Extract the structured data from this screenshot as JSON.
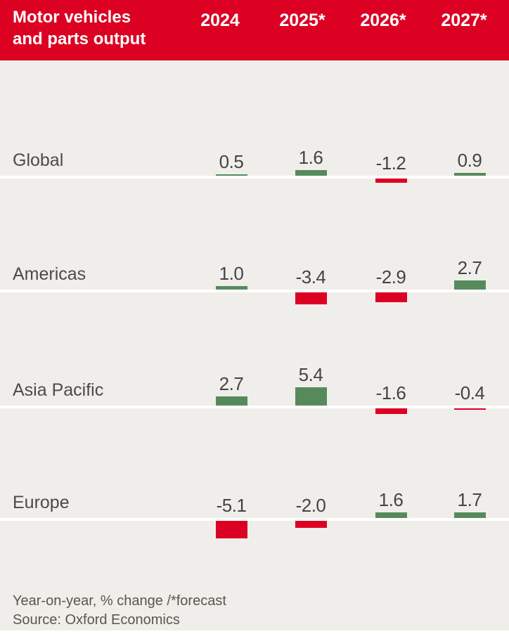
{
  "header": {
    "title_lines": [
      "Motor vehicles",
      "and parts output"
    ]
  },
  "chart_data": {
    "type": "bar",
    "title": "Motor vehicles and parts output",
    "categories": [
      "2024",
      "2025*",
      "2026*",
      "2027*"
    ],
    "series": [
      {
        "name": "Global",
        "values": [
          0.5,
          1.6,
          -1.2,
          0.9
        ],
        "labels": [
          "0.5",
          "1.6",
          "-1.2",
          "0.9"
        ]
      },
      {
        "name": "Americas",
        "values": [
          1.0,
          -3.4,
          -2.9,
          2.7
        ],
        "labels": [
          "1.0",
          "-3.4",
          "-2.9",
          "2.7"
        ]
      },
      {
        "name": "Asia Pacific",
        "values": [
          2.7,
          5.4,
          -1.6,
          -0.4
        ],
        "labels": [
          "2.7",
          "5.4",
          "-1.6",
          "-0.4"
        ]
      },
      {
        "name": "Europe",
        "values": [
          -5.1,
          -2.0,
          1.6,
          1.7
        ],
        "labels": [
          "-5.1",
          "-2.0",
          "1.6",
          "1.7"
        ]
      }
    ],
    "ylabel": "Year-on-year, % change",
    "value_note": "Year-on-year, % change /*forecast",
    "source": "Source: Oxford Economics",
    "legend": "none",
    "grid": "off",
    "layout_hint": "small-multiple bars per region row, shared zero baseline per row, positive green above line, negative red below line",
    "colors": {
      "header_bg": "#dc0023",
      "positive": "#578a5b",
      "negative": "#dc0023",
      "body_bg": "#f0eeea",
      "header_text": "#ffffff",
      "label_text": "#4a4a4a",
      "footnote_text": "#5a554f"
    }
  }
}
